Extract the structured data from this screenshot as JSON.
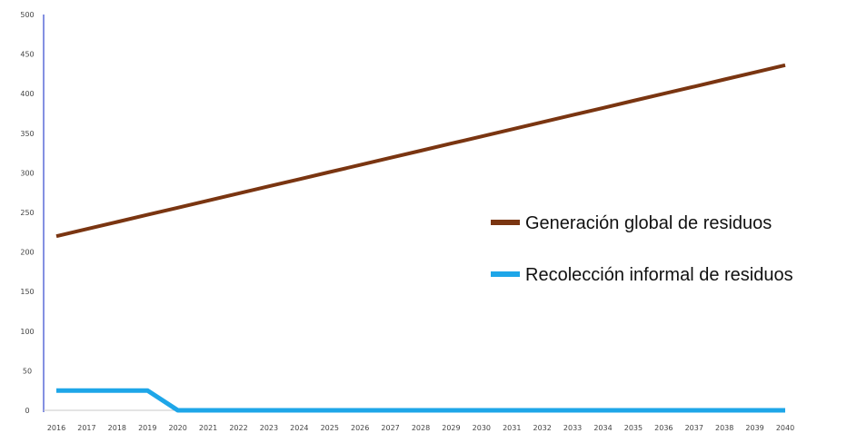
{
  "chart_data": {
    "type": "line",
    "x": [
      2016,
      2017,
      2018,
      2019,
      2020,
      2021,
      2022,
      2023,
      2024,
      2025,
      2026,
      2027,
      2028,
      2029,
      2030,
      2031,
      2032,
      2033,
      2034,
      2035,
      2036,
      2037,
      2038,
      2039,
      2040
    ],
    "xlim": [
      2016,
      2040
    ],
    "ylim": [
      0,
      500
    ],
    "yticks": [
      0,
      50,
      100,
      150,
      200,
      250,
      300,
      350,
      400,
      450,
      500
    ],
    "xlabel": "",
    "ylabel": "",
    "title": "",
    "grid": false,
    "legend": "right",
    "series": [
      {
        "name": "Generación global de residuos",
        "color": "#7a3511",
        "values": [
          220,
          229,
          238,
          247,
          256,
          265,
          274,
          283,
          292,
          301,
          310,
          319,
          328,
          337,
          346,
          355,
          364,
          373,
          382,
          391,
          400,
          409,
          418,
          427,
          436
        ]
      },
      {
        "name": "Recolección informal de residuos",
        "color": "#1ea6e8",
        "values": [
          25,
          25,
          25,
          25,
          0,
          0,
          0,
          0,
          0,
          0,
          0,
          0,
          0,
          0,
          0,
          0,
          0,
          0,
          0,
          0,
          0,
          0,
          0,
          0,
          0
        ]
      }
    ]
  }
}
